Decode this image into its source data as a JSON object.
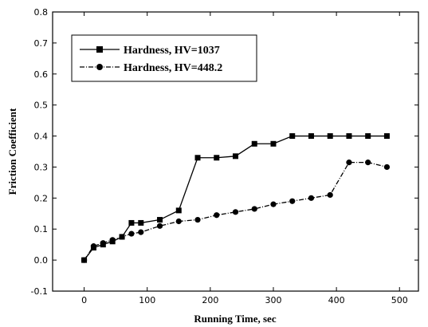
{
  "chart_data": {
    "type": "line",
    "title": "",
    "xlabel": "Running Time, sec",
    "ylabel": "Friction Coefficient",
    "xlim": [
      -50,
      530
    ],
    "ylim": [
      -0.1,
      0.8
    ],
    "xticks": [
      0,
      100,
      200,
      300,
      400,
      500
    ],
    "yticks": [
      -0.1,
      0.0,
      0.1,
      0.2,
      0.3,
      0.4,
      0.5,
      0.6,
      0.7,
      0.8
    ],
    "grid": false,
    "legend_position": "top-left",
    "series": [
      {
        "name": "Hardness, HV=1037",
        "marker": "square",
        "line": "solid",
        "x": [
          0,
          15,
          30,
          45,
          60,
          75,
          90,
          120,
          150,
          180,
          210,
          240,
          270,
          300,
          330,
          360,
          390,
          420,
          450,
          480
        ],
        "y": [
          0.0,
          0.04,
          0.05,
          0.06,
          0.075,
          0.12,
          0.12,
          0.13,
          0.16,
          0.33,
          0.33,
          0.335,
          0.375,
          0.375,
          0.4,
          0.4,
          0.4,
          0.4,
          0.4,
          0.4
        ]
      },
      {
        "name": "Hardness, HV=448.2",
        "marker": "circle",
        "line": "dashdot",
        "x": [
          0,
          15,
          30,
          45,
          60,
          75,
          90,
          120,
          150,
          180,
          210,
          240,
          270,
          300,
          330,
          360,
          390,
          420,
          450,
          480
        ],
        "y": [
          0.0,
          0.045,
          0.055,
          0.065,
          0.075,
          0.085,
          0.09,
          0.11,
          0.125,
          0.13,
          0.145,
          0.155,
          0.165,
          0.18,
          0.19,
          0.2,
          0.21,
          0.315,
          0.315,
          0.3
        ]
      }
    ]
  }
}
